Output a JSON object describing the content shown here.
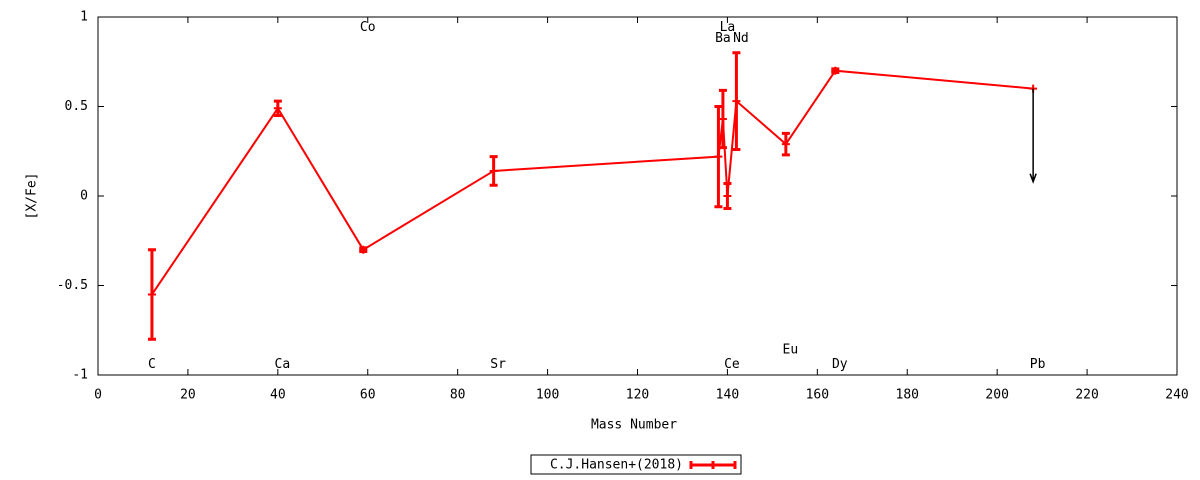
{
  "chart_data": {
    "type": "errorbar-line",
    "x_label": "Mass Number",
    "y_label": "[X/Fe]",
    "xlim": [
      0,
      240
    ],
    "xticks": [
      0,
      20,
      40,
      60,
      80,
      100,
      120,
      140,
      160,
      180,
      200,
      220,
      240
    ],
    "ylim": [
      -1,
      1
    ],
    "yticks": [
      -1,
      -0.5,
      0,
      0.5,
      1
    ],
    "grid": false,
    "legend": "bottom",
    "series": [
      {
        "name": "C.J.Hansen+(2018)",
        "color": "#ff0000",
        "x": [
          12,
          40,
          59,
          88,
          138,
          139,
          140,
          142,
          153,
          164,
          208
        ],
        "values": [
          -0.55,
          0.49,
          -0.3,
          0.14,
          0.22,
          0.43,
          0.0,
          0.53,
          0.29,
          0.7,
          0.6
        ],
        "errors": [
          0.25,
          0.04,
          0.01,
          0.08,
          0.28,
          0.16,
          0.07,
          0.27,
          0.06,
          0.01,
          null
        ]
      }
    ],
    "upper_limits": [
      {
        "x": 208,
        "y": 0.6,
        "y_end": 0.08,
        "color": "#000000"
      }
    ],
    "labels": [
      {
        "text": "C",
        "x": 12,
        "y": -0.94
      },
      {
        "text": "Ca",
        "x": 41,
        "y": -0.94
      },
      {
        "text": "Co",
        "x": 60,
        "y": 0.94
      },
      {
        "text": "Sr",
        "x": 89,
        "y": -0.94
      },
      {
        "text": "Ba",
        "x": 139,
        "y": 0.88
      },
      {
        "text": "La",
        "x": 140,
        "y": 0.94
      },
      {
        "text": "Ce",
        "x": 141,
        "y": -0.94
      },
      {
        "text": "Nd",
        "x": 143,
        "y": 0.88
      },
      {
        "text": "Eu",
        "x": 154,
        "y": -0.86
      },
      {
        "text": "Dy",
        "x": 165,
        "y": -0.94
      },
      {
        "text": "Pb",
        "x": 209,
        "y": -0.94
      }
    ]
  }
}
